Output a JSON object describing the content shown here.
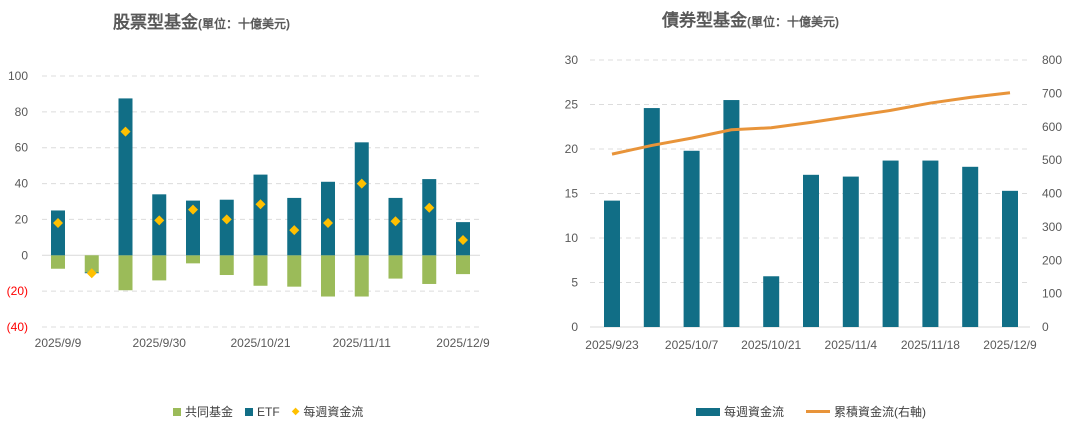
{
  "chart_data": [
    {
      "type": "bar",
      "title": "股票型基金",
      "unit": "(單位：十億美元)",
      "categories": [
        "2025/9/9",
        "",
        "",
        "2025/9/30",
        "",
        "",
        "2025/10/21",
        "",
        "",
        "2025/11/11",
        "",
        "",
        "2025/12/9"
      ],
      "yticks": [
        "100",
        "80",
        "60",
        "40",
        "20",
        "0",
        "(20)",
        "(40)"
      ],
      "ylim": [
        -40,
        100
      ],
      "series": [
        {
          "name": "共同基金",
          "kind": "bar",
          "color": "#9bbb59",
          "values": [
            -7.5,
            -9.5,
            -19.5,
            -14,
            -4.5,
            -11,
            -17,
            -17.5,
            -23,
            -23,
            -13,
            -16,
            -10.5
          ]
        },
        {
          "name": "ETF",
          "kind": "bar",
          "color": "#116e86",
          "values": [
            25,
            -0.5,
            87.5,
            34,
            30.5,
            31,
            45,
            32,
            41,
            63,
            32,
            42.5,
            18.5
          ]
        },
        {
          "name": "每週資金流",
          "kind": "marker",
          "color": "#ffc000",
          "values": [
            18,
            -10,
            69,
            19.5,
            25.5,
            20,
            28.5,
            14,
            18,
            40,
            19,
            26.5,
            8.5
          ]
        }
      ]
    },
    {
      "type": "bar+line",
      "title": "債券型基金",
      "unit": "(單位：十億美元)",
      "categories": [
        "2025/9/23",
        "",
        "2025/10/7",
        "",
        "2025/10/21",
        "",
        "2025/11/4",
        "",
        "2025/11/18",
        "",
        "2025/12/9"
      ],
      "yticks": [
        "30",
        "25",
        "20",
        "15",
        "10",
        "5",
        "0"
      ],
      "ylim": [
        0,
        30
      ],
      "y2ticks": [
        "800",
        "700",
        "600",
        "500",
        "400",
        "300",
        "200",
        "100",
        "0"
      ],
      "y2lim": [
        0,
        800
      ],
      "series": [
        {
          "name": "每週資金流",
          "kind": "bar",
          "color": "#116e86",
          "values": [
            14.2,
            24.6,
            19.8,
            25.5,
            5.7,
            17.1,
            16.9,
            18.7,
            18.7,
            18.0,
            15.3
          ]
        },
        {
          "name": "累積資金流(右軸)",
          "kind": "line",
          "axis": "right",
          "color": "#e8943a",
          "values": [
            518,
            544,
            566,
            591,
            597,
            613,
            631,
            649,
            671,
            688,
            702
          ]
        }
      ]
    }
  ]
}
